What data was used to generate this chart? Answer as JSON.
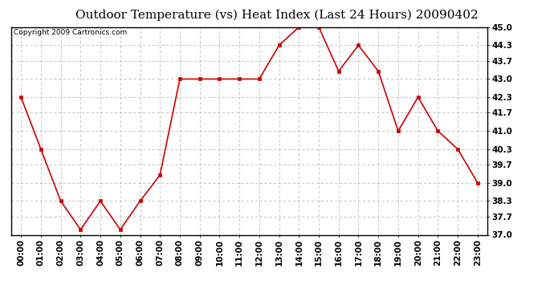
{
  "title": "Outdoor Temperature (vs) Heat Index (Last 24 Hours) 20090402",
  "copyright": "Copyright 2009 Cartronics.com",
  "x_labels": [
    "00:00",
    "01:00",
    "02:00",
    "03:00",
    "04:00",
    "05:00",
    "06:00",
    "07:00",
    "08:00",
    "09:00",
    "10:00",
    "11:00",
    "12:00",
    "13:00",
    "14:00",
    "15:00",
    "16:00",
    "17:00",
    "18:00",
    "19:00",
    "20:00",
    "21:00",
    "22:00",
    "23:00"
  ],
  "y_values": [
    42.3,
    40.3,
    38.3,
    37.2,
    38.3,
    37.2,
    38.3,
    39.3,
    43.0,
    43.0,
    43.0,
    43.0,
    43.0,
    44.3,
    45.0,
    45.0,
    43.3,
    44.3,
    43.3,
    41.0,
    42.3,
    41.0,
    40.3,
    39.0
  ],
  "line_color": "#cc0000",
  "marker": "s",
  "marker_size": 3,
  "grid_color": "#bbbbbb",
  "background_color": "#ffffff",
  "ylim_min": 37.0,
  "ylim_max": 45.0,
  "yticks": [
    37.0,
    37.7,
    38.3,
    39.0,
    39.7,
    40.3,
    41.0,
    41.7,
    42.3,
    43.0,
    43.7,
    44.3,
    45.0
  ],
  "title_fontsize": 11,
  "copyright_fontsize": 6.5,
  "tick_fontsize": 7.5,
  "fig_width": 6.9,
  "fig_height": 3.75
}
